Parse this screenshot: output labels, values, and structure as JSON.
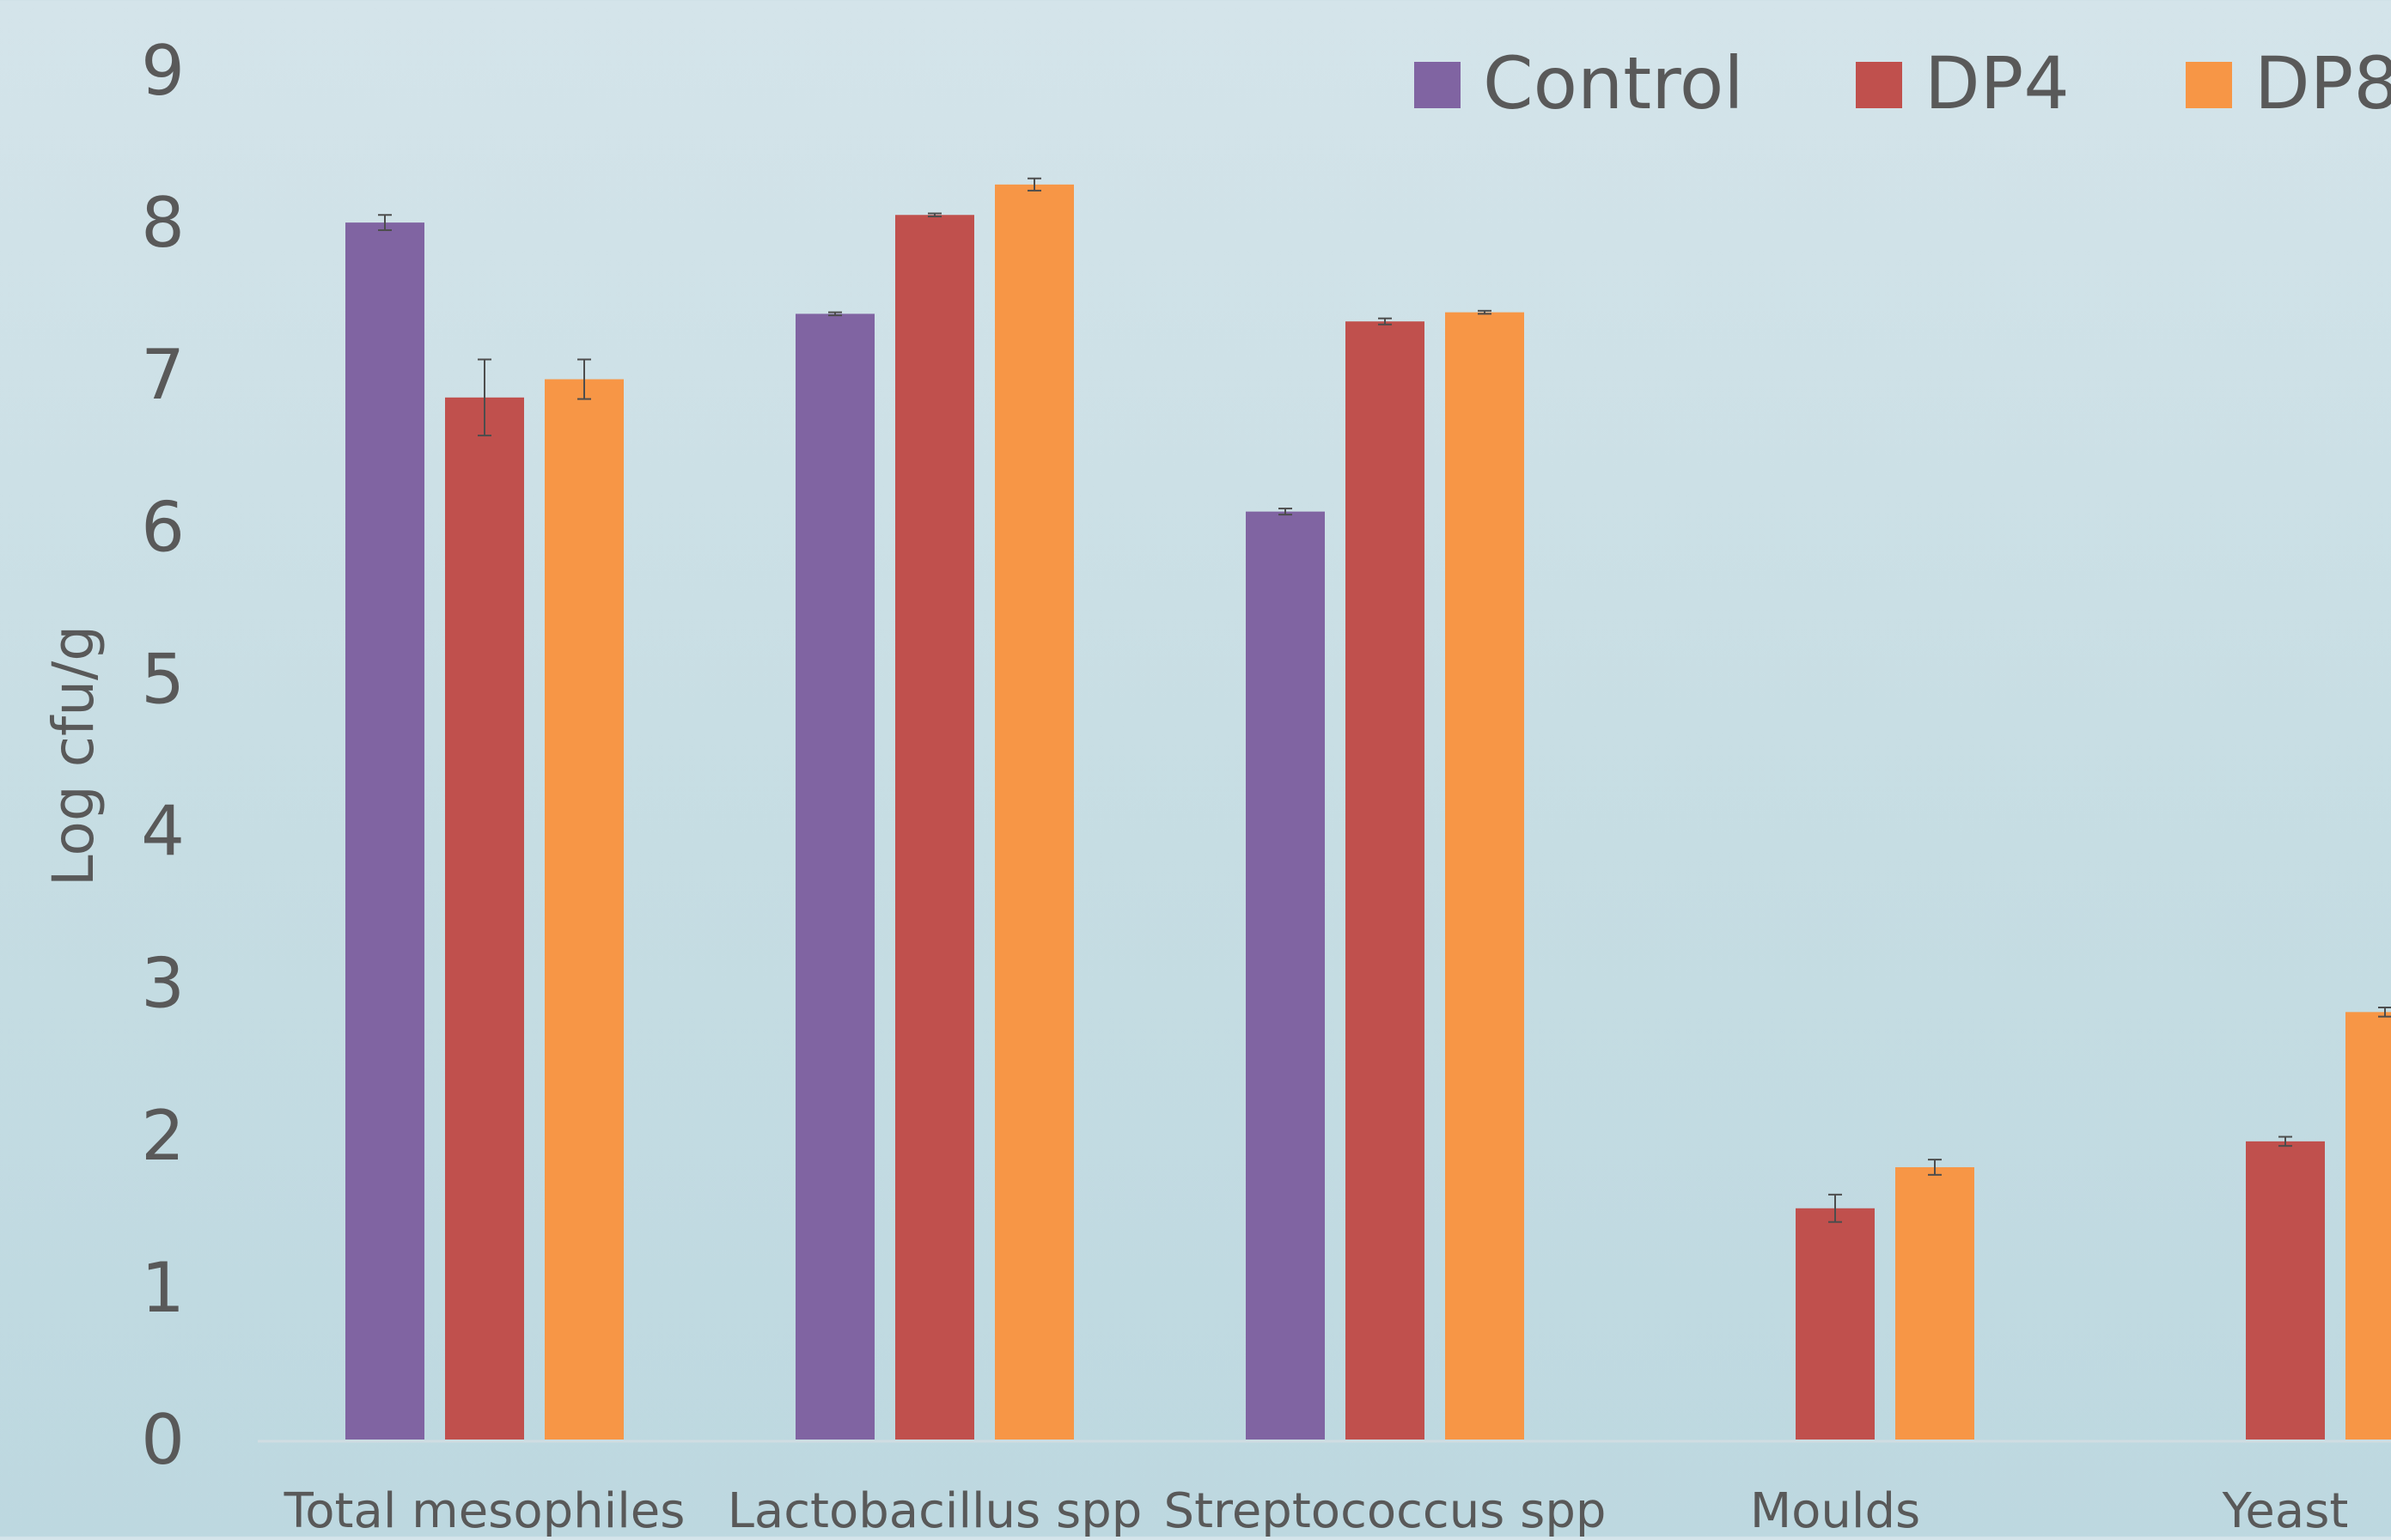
{
  "chart_data": {
    "type": "bar",
    "title": "",
    "ylabel": "Log cfu/g",
    "xlabel": "",
    "ylim": [
      0,
      9
    ],
    "yticks": [
      0,
      1,
      2,
      3,
      4,
      5,
      6,
      7,
      8,
      9
    ],
    "grid": false,
    "legend_position": "top-right",
    "categories": [
      "Total mesophiles",
      "Lactobacillus spp",
      "Streptococcus spp",
      "Moulds",
      "Yeast"
    ],
    "series": [
      {
        "name": "Control",
        "color": "#8064a2",
        "values": [
          8.0,
          7.4,
          6.1,
          0,
          0
        ],
        "errors": [
          0.05,
          0.01,
          0.02,
          0,
          0
        ]
      },
      {
        "name": "DP4",
        "color": "#c0504d",
        "values": [
          6.85,
          8.05,
          7.35,
          1.52,
          1.96
        ],
        "errors": [
          0.25,
          0.01,
          0.02,
          0.09,
          0.03
        ]
      },
      {
        "name": "DP8",
        "color": "#f79646",
        "values": [
          6.97,
          8.25,
          7.41,
          1.79,
          2.81
        ],
        "errors": [
          0.13,
          0.04,
          0.01,
          0.05,
          0.03
        ]
      }
    ]
  }
}
